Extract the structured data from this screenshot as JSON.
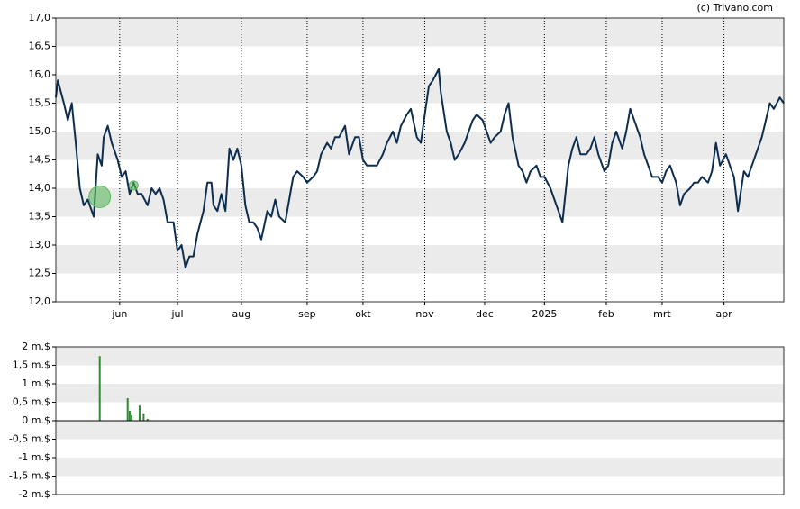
{
  "source": "(c) Trivano.com",
  "chart_data": [
    {
      "type": "line",
      "x": [
        0,
        1,
        4,
        6,
        8,
        10,
        12,
        14,
        16,
        19,
        21,
        23,
        24,
        26,
        28,
        31,
        33,
        35,
        37,
        39,
        41,
        43,
        46,
        48,
        50,
        52,
        54,
        56,
        59,
        61,
        63,
        65,
        67,
        69,
        71,
        74,
        76,
        78,
        79,
        81,
        83,
        85,
        87,
        89,
        91,
        93,
        95,
        97,
        99,
        101,
        103,
        106,
        108,
        110,
        112,
        115,
        117,
        119,
        121,
        124,
        126,
        129,
        131,
        133,
        136,
        138,
        140,
        142,
        145,
        147,
        150,
        152,
        154,
        156,
        159,
        161,
        164,
        166,
        169,
        171,
        173,
        176,
        178,
        181,
        183,
        185,
        187,
        189,
        192,
        193,
        196,
        198,
        200,
        202,
        205,
        207,
        209,
        211,
        214,
        216,
        218,
        220,
        223,
        225,
        227,
        229,
        232,
        234,
        236,
        238,
        241,
        243,
        245,
        248,
        250,
        252,
        254,
        257,
        259,
        261,
        263,
        266,
        268,
        270,
        272,
        275,
        277,
        279,
        281,
        284,
        286,
        288,
        290,
        293,
        295,
        297,
        299,
        302,
        304,
        306,
        308,
        311,
        313,
        315,
        318,
        320,
        322,
        324,
        327,
        329,
        331,
        333,
        336,
        338,
        340,
        342,
        345,
        347,
        349,
        351,
        354,
        356,
        358,
        360,
        363,
        365
      ],
      "series": [
        {
          "color": "#0d2d4f",
          "values": [
            15.6,
            15.9,
            15.5,
            15.2,
            15.5,
            14.8,
            14.0,
            13.7,
            13.8,
            13.5,
            14.6,
            14.4,
            14.9,
            15.1,
            14.8,
            14.5,
            14.2,
            14.3,
            13.9,
            14.1,
            13.9,
            13.9,
            13.7,
            14.0,
            13.9,
            14.0,
            13.8,
            13.4,
            13.4,
            12.9,
            13.0,
            12.6,
            12.8,
            12.8,
            13.2,
            13.6,
            14.1,
            14.1,
            13.7,
            13.6,
            13.9,
            13.6,
            14.7,
            14.5,
            14.7,
            14.4,
            13.7,
            13.4,
            13.4,
            13.3,
            13.1,
            13.6,
            13.5,
            13.8,
            13.5,
            13.4,
            13.8,
            14.2,
            14.3,
            14.2,
            14.1,
            14.2,
            14.3,
            14.6,
            14.8,
            14.7,
            14.9,
            14.9,
            15.1,
            14.6,
            14.9,
            14.9,
            14.5,
            14.4,
            14.4,
            14.4,
            14.6,
            14.8,
            15.0,
            14.8,
            15.1,
            15.3,
            15.4,
            14.9,
            14.8,
            15.3,
            15.8,
            15.9,
            16.1,
            15.7,
            15.0,
            14.8,
            14.5,
            14.6,
            14.8,
            15.0,
            15.2,
            15.3,
            15.2,
            15.0,
            14.8,
            14.9,
            15.0,
            15.3,
            15.5,
            14.9,
            14.4,
            14.3,
            14.1,
            14.3,
            14.4,
            14.2,
            14.2,
            14.0,
            13.8,
            13.6,
            13.4,
            14.4,
            14.7,
            14.9,
            14.6,
            14.6,
            14.7,
            14.9,
            14.6,
            14.3,
            14.4,
            14.8,
            15.0,
            14.7,
            15.0,
            15.4,
            15.2,
            14.9,
            14.6,
            14.4,
            14.2,
            14.2,
            14.1,
            14.3,
            14.4,
            14.1,
            13.7,
            13.9,
            14.0,
            14.1,
            14.1,
            14.2,
            14.1,
            14.3,
            14.8,
            14.4,
            14.6,
            14.4,
            14.2,
            13.6,
            14.3,
            14.2,
            14.4,
            14.6,
            14.9,
            15.2,
            15.5,
            15.4,
            15.6,
            15.5
          ]
        }
      ],
      "markers": {
        "color": "#5cb85c",
        "x": [
          22,
          39
        ],
        "values": [
          13.85,
          14.05
        ]
      },
      "xlim": [
        0,
        365
      ],
      "xticks": [
        {
          "value": 32,
          "label": "jun"
        },
        {
          "value": 61,
          "label": "jul"
        },
        {
          "value": 93,
          "label": "aug"
        },
        {
          "value": 126,
          "label": "sep"
        },
        {
          "value": 154,
          "label": "okt"
        },
        {
          "value": 185,
          "label": "nov"
        },
        {
          "value": 215,
          "label": "dec"
        },
        {
          "value": 245,
          "label": "2025"
        },
        {
          "value": 276,
          "label": "feb"
        },
        {
          "value": 304,
          "label": "mrt"
        },
        {
          "value": 335,
          "label": "apr"
        }
      ],
      "ylim": [
        12,
        17
      ],
      "yticks": [
        {
          "value": 12,
          "label": "12,0"
        },
        {
          "value": 12.5,
          "label": "12,5"
        },
        {
          "value": 13,
          "label": "13,0"
        },
        {
          "value": 13.5,
          "label": "13,5"
        },
        {
          "value": 14,
          "label": "14,0"
        },
        {
          "value": 14.5,
          "label": "14,5"
        },
        {
          "value": 15,
          "label": "15,0"
        },
        {
          "value": 15.5,
          "label": "15,5"
        },
        {
          "value": 16,
          "label": "16,0"
        },
        {
          "value": 16.5,
          "label": "16,5"
        },
        {
          "value": 17,
          "label": "17,0"
        }
      ],
      "grid": true
    },
    {
      "type": "bar",
      "x": [
        22,
        36,
        37,
        38,
        42,
        44,
        46
      ],
      "values": [
        1.75,
        0.61,
        0.27,
        0.15,
        0.41,
        0.2,
        0.05
      ],
      "color": "#2e8b2e",
      "xlim": [
        0,
        365
      ],
      "ylim": [
        -2,
        2
      ],
      "yticks": [
        {
          "value": -2,
          "label": "-2 m.$"
        },
        {
          "value": -1.5,
          "label": "-1,5 m.$"
        },
        {
          "value": -1,
          "label": "-1 m.$"
        },
        {
          "value": -0.5,
          "label": "-0,5 m.$"
        },
        {
          "value": 0,
          "label": "0 m.$"
        },
        {
          "value": 0.5,
          "label": "0,5 m.$"
        },
        {
          "value": 1,
          "label": "1 m.$"
        },
        {
          "value": 1.5,
          "label": "1,5 m.$"
        },
        {
          "value": 2,
          "label": "2 m.$"
        }
      ],
      "grid": true
    }
  ]
}
